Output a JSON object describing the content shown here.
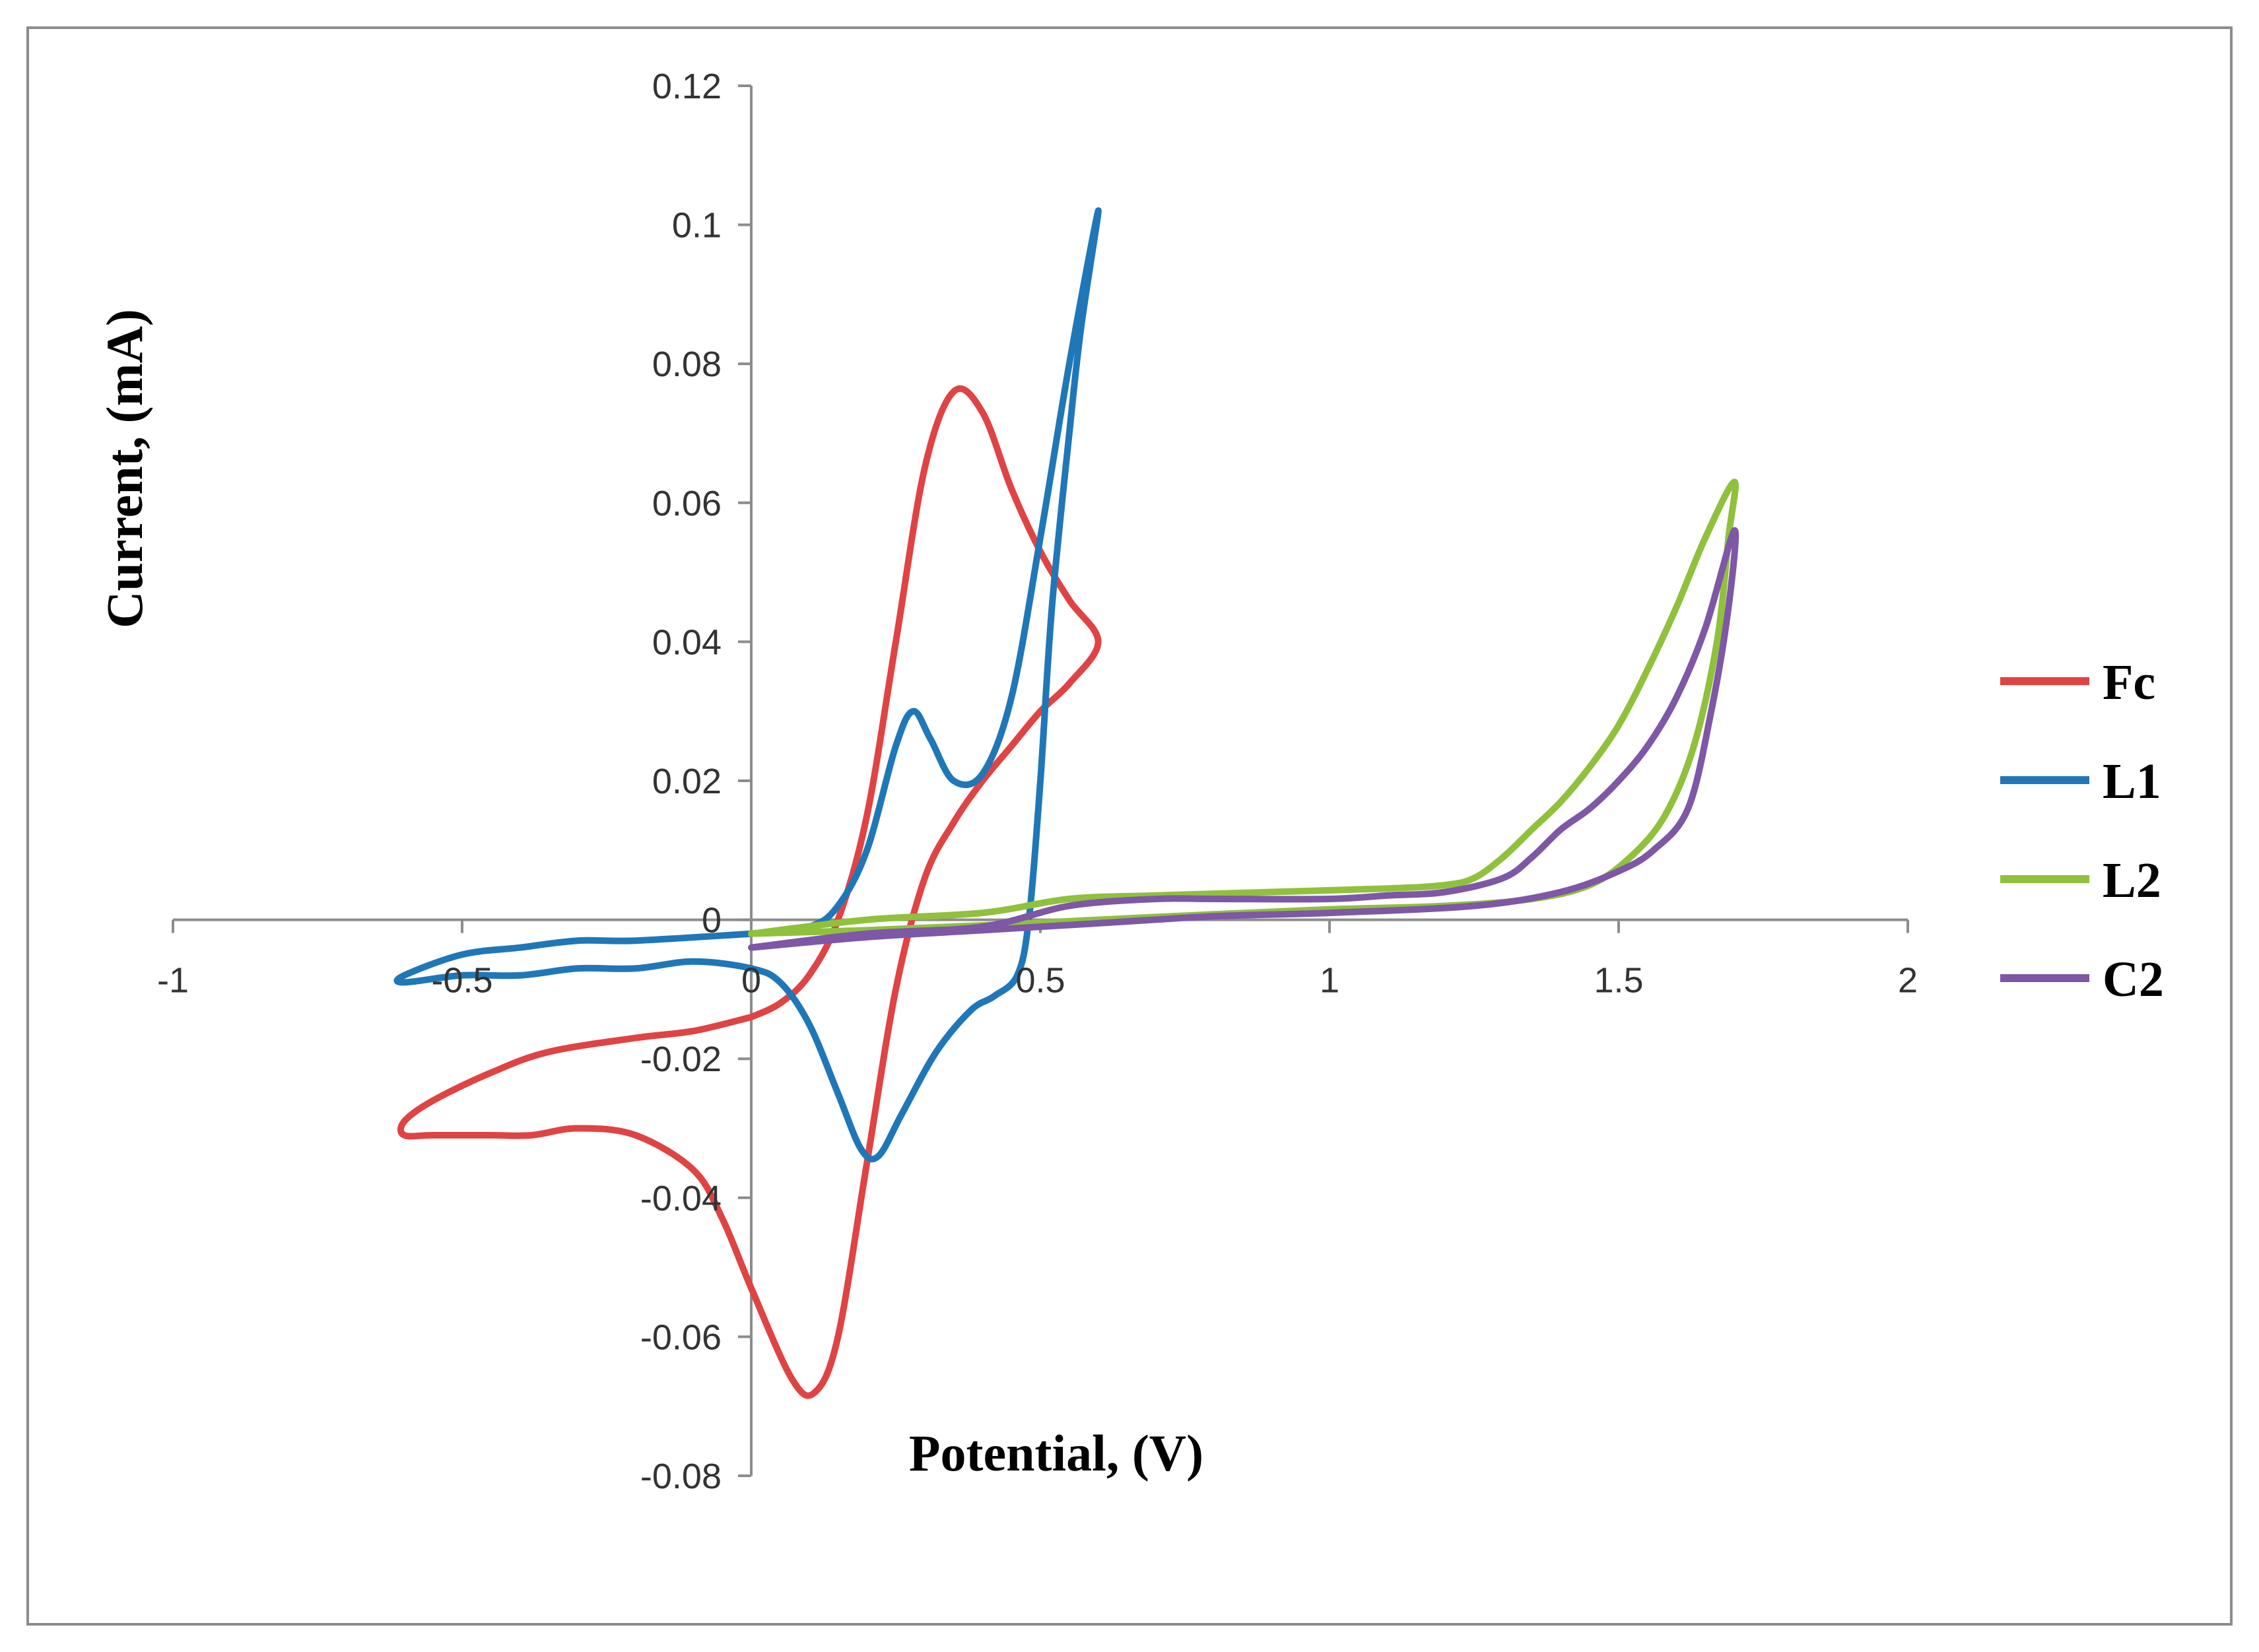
{
  "chart_data": {
    "type": "line",
    "title": "",
    "xlabel": "Potential, (V)",
    "ylabel": "Current, (mA)",
    "xlim": [
      -1,
      2
    ],
    "ylim": [
      -0.08,
      0.12
    ],
    "xticks": [
      {
        "value": -1,
        "label": "-1"
      },
      {
        "value": -0.5,
        "label": "-0.5"
      },
      {
        "value": 0,
        "label": "0"
      },
      {
        "value": 0.5,
        "label": "0.5"
      },
      {
        "value": 1,
        "label": "1"
      },
      {
        "value": 1.5,
        "label": "1.5"
      },
      {
        "value": 2,
        "label": "2"
      }
    ],
    "yticks": [
      {
        "value": 0.12,
        "label": "0.12"
      },
      {
        "value": 0.1,
        "label": "0.1"
      },
      {
        "value": 0.08,
        "label": "0.08"
      },
      {
        "value": 0.06,
        "label": "0.06"
      },
      {
        "value": 0.04,
        "label": "0.04"
      },
      {
        "value": 0.02,
        "label": "0.02"
      },
      {
        "value": 0,
        "label": "0"
      },
      {
        "value": -0.02,
        "label": "-0.02"
      },
      {
        "value": -0.04,
        "label": "-0.04"
      },
      {
        "value": -0.06,
        "label": "-0.06"
      },
      {
        "value": -0.08,
        "label": "-0.08"
      }
    ],
    "grid": false,
    "legend_position": "right",
    "series": [
      {
        "name": "Fc",
        "color": "#e04343",
        "points": [
          [
            0.0,
            -0.014
          ],
          [
            0.05,
            -0.012
          ],
          [
            0.1,
            -0.008
          ],
          [
            0.15,
            0.0
          ],
          [
            0.2,
            0.015
          ],
          [
            0.25,
            0.04
          ],
          [
            0.3,
            0.065
          ],
          [
            0.35,
            0.076
          ],
          [
            0.4,
            0.073
          ],
          [
            0.45,
            0.062
          ],
          [
            0.5,
            0.053
          ],
          [
            0.55,
            0.046
          ],
          [
            0.6,
            0.04
          ],
          [
            0.55,
            0.034
          ],
          [
            0.5,
            0.03
          ],
          [
            0.45,
            0.025
          ],
          [
            0.4,
            0.02
          ],
          [
            0.35,
            0.014
          ],
          [
            0.3,
            0.006
          ],
          [
            0.25,
            -0.01
          ],
          [
            0.2,
            -0.035
          ],
          [
            0.15,
            -0.06
          ],
          [
            0.11,
            -0.068
          ],
          [
            0.07,
            -0.066
          ],
          [
            0.0,
            -0.053
          ],
          [
            -0.05,
            -0.043
          ],
          [
            -0.1,
            -0.036
          ],
          [
            -0.2,
            -0.031
          ],
          [
            -0.3,
            -0.03
          ],
          [
            -0.38,
            -0.031
          ],
          [
            -0.45,
            -0.031
          ],
          [
            -0.55,
            -0.031
          ],
          [
            -0.6,
            -0.031
          ],
          [
            -0.6,
            -0.029
          ],
          [
            -0.55,
            -0.026
          ],
          [
            -0.45,
            -0.022
          ],
          [
            -0.35,
            -0.019
          ],
          [
            -0.2,
            -0.017
          ],
          [
            -0.1,
            -0.016
          ],
          [
            0.0,
            -0.014
          ]
        ]
      },
      {
        "name": "L1",
        "color": "#1f77b8",
        "points": [
          [
            0.0,
            -0.002
          ],
          [
            0.1,
            -0.001
          ],
          [
            0.15,
            0.002
          ],
          [
            0.2,
            0.01
          ],
          [
            0.25,
            0.025
          ],
          [
            0.28,
            0.03
          ],
          [
            0.31,
            0.026
          ],
          [
            0.35,
            0.02
          ],
          [
            0.4,
            0.021
          ],
          [
            0.45,
            0.032
          ],
          [
            0.5,
            0.055
          ],
          [
            0.55,
            0.08
          ],
          [
            0.6,
            0.102
          ],
          [
            0.57,
            0.085
          ],
          [
            0.55,
            0.07
          ],
          [
            0.52,
            0.045
          ],
          [
            0.5,
            0.02
          ],
          [
            0.48,
            0.0
          ],
          [
            0.46,
            -0.008
          ],
          [
            0.42,
            -0.011
          ],
          [
            0.38,
            -0.013
          ],
          [
            0.32,
            -0.019
          ],
          [
            0.26,
            -0.028
          ],
          [
            0.22,
            -0.034
          ],
          [
            0.19,
            -0.033
          ],
          [
            0.15,
            -0.025
          ],
          [
            0.1,
            -0.015
          ],
          [
            0.05,
            -0.009
          ],
          [
            0.0,
            -0.007
          ],
          [
            -0.1,
            -0.006
          ],
          [
            -0.2,
            -0.007
          ],
          [
            -0.3,
            -0.007
          ],
          [
            -0.4,
            -0.008
          ],
          [
            -0.5,
            -0.008
          ],
          [
            -0.6,
            -0.009
          ],
          [
            -0.6,
            -0.008
          ],
          [
            -0.5,
            -0.005
          ],
          [
            -0.4,
            -0.004
          ],
          [
            -0.3,
            -0.003
          ],
          [
            -0.2,
            -0.003
          ],
          [
            0.0,
            -0.002
          ]
        ]
      },
      {
        "name": "L2",
        "color": "#8fc13c",
        "points": [
          [
            0.0,
            -0.002
          ],
          [
            0.2,
            0.0
          ],
          [
            0.4,
            0.001
          ],
          [
            0.55,
            0.003
          ],
          [
            0.7,
            0.0035
          ],
          [
            0.9,
            0.004
          ],
          [
            1.1,
            0.0045
          ],
          [
            1.2,
            0.005
          ],
          [
            1.25,
            0.006
          ],
          [
            1.3,
            0.009
          ],
          [
            1.35,
            0.013
          ],
          [
            1.4,
            0.017
          ],
          [
            1.45,
            0.022
          ],
          [
            1.5,
            0.028
          ],
          [
            1.55,
            0.036
          ],
          [
            1.6,
            0.045
          ],
          [
            1.65,
            0.055
          ],
          [
            1.7,
            0.063
          ],
          [
            1.69,
            0.055
          ],
          [
            1.67,
            0.04
          ],
          [
            1.63,
            0.025
          ],
          [
            1.58,
            0.015
          ],
          [
            1.52,
            0.009
          ],
          [
            1.45,
            0.005
          ],
          [
            1.35,
            0.003
          ],
          [
            1.2,
            0.002
          ],
          [
            1.0,
            0.0015
          ],
          [
            0.8,
            0.0008
          ],
          [
            0.6,
            0.0
          ],
          [
            0.4,
            -0.0008
          ],
          [
            0.2,
            -0.0015
          ],
          [
            0.0,
            -0.002
          ]
        ]
      },
      {
        "name": "C2",
        "color": "#7e57a6",
        "points": [
          [
            0.0,
            -0.004
          ],
          [
            0.2,
            -0.002
          ],
          [
            0.4,
            -0.001
          ],
          [
            0.55,
            0.002
          ],
          [
            0.7,
            0.003
          ],
          [
            0.8,
            0.003
          ],
          [
            1.0,
            0.003
          ],
          [
            1.1,
            0.0035
          ],
          [
            1.2,
            0.004
          ],
          [
            1.3,
            0.006
          ],
          [
            1.35,
            0.009
          ],
          [
            1.4,
            0.013
          ],
          [
            1.45,
            0.016
          ],
          [
            1.5,
            0.02
          ],
          [
            1.55,
            0.025
          ],
          [
            1.6,
            0.032
          ],
          [
            1.65,
            0.042
          ],
          [
            1.7,
            0.056
          ],
          [
            1.69,
            0.045
          ],
          [
            1.66,
            0.03
          ],
          [
            1.62,
            0.016
          ],
          [
            1.56,
            0.01
          ],
          [
            1.5,
            0.007
          ],
          [
            1.4,
            0.004
          ],
          [
            1.25,
            0.002
          ],
          [
            1.0,
            0.001
          ],
          [
            0.8,
            0.0005
          ],
          [
            0.6,
            -0.0005
          ],
          [
            0.4,
            -0.0015
          ],
          [
            0.2,
            -0.0025
          ],
          [
            0.0,
            -0.004
          ]
        ]
      }
    ]
  }
}
